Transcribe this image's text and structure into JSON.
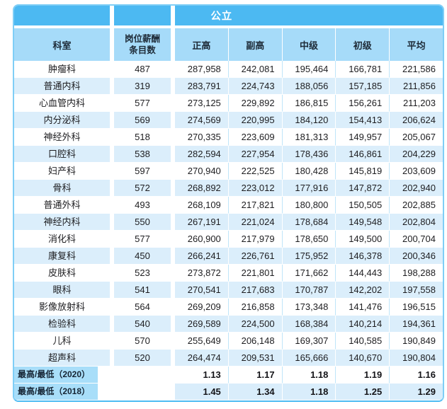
{
  "chart_data": {
    "type": "table",
    "group_header": "公立",
    "headers": {
      "dept": "科室",
      "count_line1": "岗位薪酬",
      "count_line2": "条目数",
      "salary": [
        "正高",
        "副高",
        "中级",
        "初级",
        "平均"
      ]
    },
    "rows": [
      {
        "dept": "肿瘤科",
        "count": "487",
        "values": [
          "287,958",
          "242,081",
          "195,464",
          "166,781",
          "221,586"
        ]
      },
      {
        "dept": "普通内科",
        "count": "319",
        "values": [
          "283,791",
          "224,743",
          "188,056",
          "157,185",
          "211,856"
        ]
      },
      {
        "dept": "心血管内科",
        "count": "577",
        "values": [
          "273,125",
          "229,892",
          "186,815",
          "156,261",
          "211,203"
        ]
      },
      {
        "dept": "内分泌科",
        "count": "569",
        "values": [
          "274,569",
          "220,995",
          "184,120",
          "154,413",
          "206,624"
        ]
      },
      {
        "dept": "神经外科",
        "count": "518",
        "values": [
          "270,335",
          "223,609",
          "181,313",
          "149,957",
          "205,067"
        ]
      },
      {
        "dept": "口腔科",
        "count": "538",
        "values": [
          "282,594",
          "227,954",
          "178,436",
          "146,861",
          "204,229"
        ]
      },
      {
        "dept": "妇产科",
        "count": "597",
        "values": [
          "270,940",
          "222,525",
          "180,428",
          "145,819",
          "203,609"
        ]
      },
      {
        "dept": "骨科",
        "count": "572",
        "values": [
          "268,892",
          "223,012",
          "177,916",
          "147,872",
          "202,940"
        ]
      },
      {
        "dept": "普通外科",
        "count": "493",
        "values": [
          "268,109",
          "217,821",
          "180,800",
          "150,505",
          "202,885"
        ]
      },
      {
        "dept": "神经内科",
        "count": "550",
        "values": [
          "267,191",
          "221,024",
          "178,684",
          "149,548",
          "202,804"
        ]
      },
      {
        "dept": "消化科",
        "count": "577",
        "values": [
          "260,900",
          "217,979",
          "178,650",
          "149,500",
          "200,704"
        ]
      },
      {
        "dept": "康复科",
        "count": "450",
        "values": [
          "266,241",
          "226,761",
          "175,952",
          "146,378",
          "200,346"
        ]
      },
      {
        "dept": "皮肤科",
        "count": "523",
        "values": [
          "273,872",
          "221,801",
          "171,662",
          "144,443",
          "198,288"
        ]
      },
      {
        "dept": "眼科",
        "count": "541",
        "values": [
          "270,541",
          "217,683",
          "170,787",
          "142,202",
          "197,558"
        ]
      },
      {
        "dept": "影像放射科",
        "count": "564",
        "values": [
          "269,209",
          "216,858",
          "173,348",
          "141,476",
          "196,515"
        ]
      },
      {
        "dept": "检验科",
        "count": "540",
        "values": [
          "269,589",
          "224,500",
          "168,384",
          "140,214",
          "194,361"
        ]
      },
      {
        "dept": "儿科",
        "count": "570",
        "values": [
          "255,649",
          "206,148",
          "169,307",
          "140,585",
          "190,849"
        ]
      },
      {
        "dept": "超声科",
        "count": "520",
        "values": [
          "264,474",
          "209,531",
          "165,666",
          "140,670",
          "190,804"
        ]
      }
    ],
    "footer_rows": [
      {
        "label": "最高/最低（2020）",
        "values": [
          "1.13",
          "1.17",
          "1.18",
          "1.19",
          "1.16"
        ]
      },
      {
        "label": "最高/最低（2018）",
        "values": [
          "1.45",
          "1.34",
          "1.18",
          "1.25",
          "1.29"
        ]
      }
    ],
    "colors": {
      "band_blue": "#4cb9f2",
      "header_bg": "#a6dbf9",
      "alt_row_bg": "#dbeefb",
      "footer_label_bg": "#a8def9",
      "footer_alt_bg": "#d9edfb",
      "border": "#7fcef6",
      "header_text": "#1e2b38",
      "body_text": "#1d1d20"
    }
  }
}
